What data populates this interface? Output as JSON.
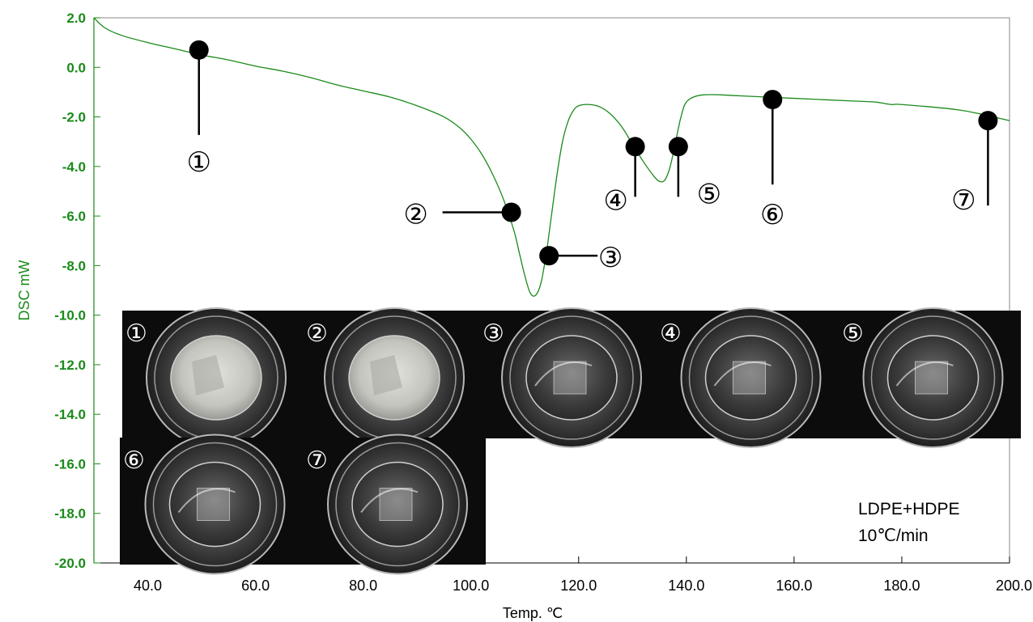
{
  "chart_data": {
    "type": "line",
    "xlabel": "Temp. ℃",
    "ylabel": "DSC mW",
    "xlim": [
      30,
      200
    ],
    "ylim": [
      -20,
      2
    ],
    "xticks": [
      "40.0",
      "60.0",
      "80.0",
      "100.0",
      "120.0",
      "140.0",
      "160.0",
      "180.0",
      "200.0"
    ],
    "yticks": [
      "2.0",
      "0.0",
      "-2.0",
      "-4.0",
      "-6.0",
      "-8.0",
      "-10.0",
      "-12.0",
      "-14.0",
      "-16.0",
      "-18.0",
      "-20.0"
    ],
    "line_color": "#1a8a1a",
    "series": [
      {
        "x": [
          30,
          32,
          35,
          40,
          45,
          50,
          55,
          60,
          65,
          70,
          75,
          80,
          85,
          90,
          95,
          98,
          100,
          102,
          104,
          106,
          108,
          109,
          110,
          111,
          112,
          113,
          114,
          115,
          116,
          117,
          118,
          119,
          120,
          122,
          124,
          126,
          128,
          130,
          132,
          134,
          135,
          136,
          137,
          138,
          139,
          140,
          142,
          145,
          150,
          160,
          170,
          175,
          178,
          180,
          190,
          195,
          200
        ],
        "y": [
          2.0,
          1.6,
          1.3,
          1.0,
          0.75,
          0.5,
          0.3,
          0.05,
          -0.15,
          -0.4,
          -0.7,
          -0.95,
          -1.2,
          -1.55,
          -2.0,
          -2.45,
          -2.9,
          -3.5,
          -4.3,
          -5.3,
          -6.6,
          -7.5,
          -8.4,
          -9.1,
          -9.2,
          -8.7,
          -7.5,
          -5.9,
          -4.3,
          -3.0,
          -2.2,
          -1.75,
          -1.55,
          -1.5,
          -1.6,
          -1.9,
          -2.4,
          -3.1,
          -3.8,
          -4.4,
          -4.6,
          -4.55,
          -4.0,
          -3.0,
          -2.0,
          -1.4,
          -1.15,
          -1.1,
          -1.15,
          -1.25,
          -1.35,
          -1.4,
          -1.5,
          -1.5,
          -1.7,
          -1.9,
          -2.15
        ]
      }
    ],
    "markers": [
      {
        "label": "①",
        "x": 49.5,
        "y": 0.7
      },
      {
        "label": "②",
        "x": 107.5,
        "y": -5.85
      },
      {
        "label": "③",
        "x": 114.5,
        "y": -7.6
      },
      {
        "label": "④",
        "x": 130.5,
        "y": -3.2
      },
      {
        "label": "⑤",
        "x": 138.5,
        "y": -3.2
      },
      {
        "label": "⑥",
        "x": 156.0,
        "y": -1.3
      },
      {
        "label": "⑦",
        "x": 196.0,
        "y": -2.15
      }
    ],
    "photos": [
      {
        "label": "①"
      },
      {
        "label": "②"
      },
      {
        "label": "③"
      },
      {
        "label": "④"
      },
      {
        "label": "⑤"
      },
      {
        "label": "⑥"
      },
      {
        "label": "⑦"
      }
    ],
    "annotation": [
      "LDPE+HDPE",
      "10℃/min"
    ]
  }
}
